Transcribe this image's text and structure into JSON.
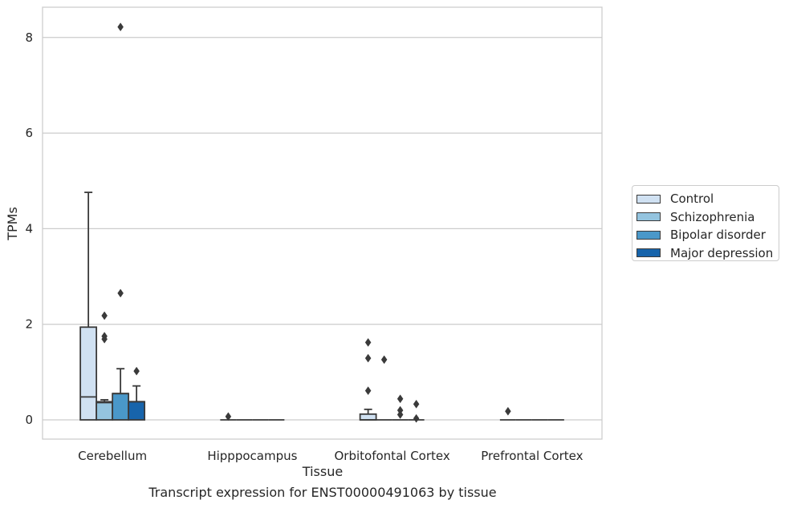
{
  "chart_data": {
    "type": "box",
    "title": "Transcript expression for ENST00000491063 by tissue",
    "xlabel": "Tissue",
    "ylabel": "TPMs",
    "ylim": [
      -0.4,
      8.65
    ],
    "yticks": [
      0,
      2,
      4,
      6,
      8
    ],
    "grid": "horizontal",
    "legend_position": "right",
    "categories": [
      "Cerebellum",
      "Hipppocampus",
      "Orbitofontal Cortex",
      "Prefrontal Cortex"
    ],
    "series": [
      {
        "name": "Control",
        "color": "#d0e1f2",
        "boxes": [
          {
            "q1": 0,
            "median": 0.48,
            "q3": 1.94,
            "whisker_low": 0,
            "whisker_high": 4.76,
            "outliers": []
          },
          {
            "q1": 0,
            "median": 0,
            "q3": 0,
            "whisker_low": 0,
            "whisker_high": 0,
            "outliers": [
              0.07
            ]
          },
          {
            "q1": 0,
            "median": 0,
            "q3": 0.12,
            "whisker_low": 0,
            "whisker_high": 0.22,
            "outliers": [
              1.62,
              1.29,
              0.61
            ]
          },
          {
            "q1": 0,
            "median": 0,
            "q3": 0,
            "whisker_low": 0,
            "whisker_high": 0,
            "outliers": [
              0.18
            ]
          }
        ]
      },
      {
        "name": "Schizophrenia",
        "color": "#94c4df",
        "boxes": [
          {
            "q1": 0,
            "median": 0.36,
            "q3": 0.38,
            "whisker_low": 0,
            "whisker_high": 0.42,
            "outliers": [
              2.18,
              1.75,
              1.69
            ]
          },
          {
            "q1": 0,
            "median": 0,
            "q3": 0,
            "whisker_low": 0,
            "whisker_high": 0,
            "outliers": []
          },
          {
            "q1": 0,
            "median": 0,
            "q3": 0,
            "whisker_low": 0,
            "whisker_high": 0,
            "outliers": [
              1.26
            ]
          },
          {
            "q1": 0,
            "median": 0,
            "q3": 0,
            "whisker_low": 0,
            "whisker_high": 0,
            "outliers": []
          }
        ]
      },
      {
        "name": "Bipolar disorder",
        "color": "#4a98c9",
        "boxes": [
          {
            "q1": 0,
            "median": 0.55,
            "q3": 0.55,
            "whisker_low": 0,
            "whisker_high": 1.07,
            "outliers": [
              8.22,
              2.65
            ]
          },
          {
            "q1": 0,
            "median": 0,
            "q3": 0,
            "whisker_low": 0,
            "whisker_high": 0,
            "outliers": []
          },
          {
            "q1": 0,
            "median": 0,
            "q3": 0,
            "whisker_low": 0,
            "whisker_high": 0,
            "outliers": [
              0.44,
              0.2,
              0.11
            ]
          },
          {
            "q1": 0,
            "median": 0,
            "q3": 0,
            "whisker_low": 0,
            "whisker_high": 0,
            "outliers": []
          }
        ]
      },
      {
        "name": "Major depression",
        "color": "#1764ab",
        "boxes": [
          {
            "q1": 0,
            "median": 0.38,
            "q3": 0.38,
            "whisker_low": 0,
            "whisker_high": 0.71,
            "outliers": [
              1.02
            ]
          },
          {
            "q1": 0,
            "median": 0,
            "q3": 0,
            "whisker_low": 0,
            "whisker_high": 0,
            "outliers": []
          },
          {
            "q1": 0,
            "median": 0,
            "q3": 0,
            "whisker_low": 0,
            "whisker_high": 0,
            "outliers": [
              0.33,
              0.03
            ]
          },
          {
            "q1": 0,
            "median": 0,
            "q3": 0,
            "whisker_low": 0,
            "whisker_high": 0,
            "outliers": []
          }
        ]
      }
    ]
  }
}
